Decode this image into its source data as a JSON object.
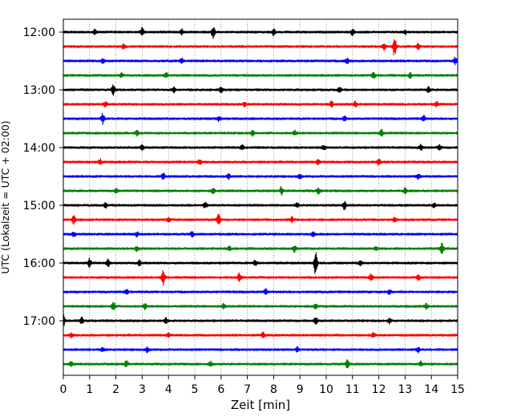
{
  "chart_data": {
    "type": "line",
    "xlabel": "Zeit  [min]",
    "ylabel": "UTC (Lokalzeit = UTC + 02:00)",
    "xlim": [
      0,
      15
    ],
    "x_ticks": [
      0,
      1,
      2,
      3,
      4,
      5,
      6,
      7,
      8,
      9,
      10,
      11,
      12,
      13,
      14,
      15
    ],
    "y_tick_labels": [
      "12:00",
      "13:00",
      "14:00",
      "15:00",
      "16:00",
      "17:00"
    ],
    "grid": "vertical-dotted",
    "color_cycle": [
      "#000000",
      "#ff0000",
      "#0000ff",
      "#008000"
    ],
    "traces": [
      {
        "start": "12:00",
        "color": "#000000",
        "events": [
          [
            1.2,
            0.5
          ],
          [
            3.0,
            0.8
          ],
          [
            4.5,
            0.6
          ],
          [
            5.7,
            1.2
          ],
          [
            8.0,
            0.6
          ],
          [
            11.0,
            0.6
          ],
          [
            13.0,
            0.5
          ]
        ]
      },
      {
        "start": "12:15",
        "color": "#ff0000",
        "events": [
          [
            2.3,
            0.6
          ],
          [
            12.2,
            0.8
          ],
          [
            12.6,
            2.2
          ],
          [
            13.5,
            0.6
          ]
        ]
      },
      {
        "start": "12:30",
        "color": "#0000ff",
        "events": [
          [
            1.5,
            0.5
          ],
          [
            4.5,
            0.6
          ],
          [
            10.8,
            0.5
          ],
          [
            14.9,
            0.7
          ]
        ]
      },
      {
        "start": "12:45",
        "color": "#008000",
        "events": [
          [
            2.2,
            0.5
          ],
          [
            3.9,
            0.6
          ],
          [
            11.8,
            0.6
          ],
          [
            13.2,
            0.5
          ]
        ]
      },
      {
        "start": "13:00",
        "color": "#000000",
        "events": [
          [
            1.9,
            1.2
          ],
          [
            4.2,
            0.5
          ],
          [
            6.0,
            0.6
          ],
          [
            10.5,
            0.6
          ],
          [
            13.9,
            0.6
          ]
        ]
      },
      {
        "start": "13:15",
        "color": "#ff0000",
        "events": [
          [
            1.6,
            0.5
          ],
          [
            6.9,
            0.5
          ],
          [
            10.2,
            0.6
          ],
          [
            11.1,
            0.6
          ],
          [
            14.2,
            0.5
          ]
        ]
      },
      {
        "start": "13:30",
        "color": "#0000ff",
        "events": [
          [
            1.5,
            1.0
          ],
          [
            5.9,
            0.5
          ],
          [
            10.7,
            0.5
          ],
          [
            13.7,
            0.6
          ]
        ]
      },
      {
        "start": "13:45",
        "color": "#008000",
        "events": [
          [
            2.8,
            0.5
          ],
          [
            7.2,
            0.5
          ],
          [
            8.8,
            0.5
          ],
          [
            12.1,
            0.7
          ]
        ]
      },
      {
        "start": "14:00",
        "color": "#000000",
        "events": [
          [
            3.0,
            0.6
          ],
          [
            6.8,
            0.5
          ],
          [
            9.9,
            0.6
          ],
          [
            13.6,
            0.6
          ],
          [
            14.3,
            0.5
          ]
        ]
      },
      {
        "start": "14:15",
        "color": "#ff0000",
        "events": [
          [
            1.4,
            0.6
          ],
          [
            5.2,
            0.6
          ],
          [
            9.7,
            0.6
          ],
          [
            12.0,
            0.7
          ]
        ]
      },
      {
        "start": "14:30",
        "color": "#0000ff",
        "events": [
          [
            3.8,
            0.6
          ],
          [
            6.3,
            0.5
          ],
          [
            9.0,
            0.5
          ],
          [
            13.5,
            0.5
          ]
        ]
      },
      {
        "start": "14:45",
        "color": "#008000",
        "events": [
          [
            2.0,
            0.5
          ],
          [
            5.7,
            0.5
          ],
          [
            8.3,
            0.9
          ],
          [
            9.7,
            0.7
          ],
          [
            13.0,
            0.6
          ]
        ]
      },
      {
        "start": "15:00",
        "color": "#000000",
        "events": [
          [
            1.6,
            0.5
          ],
          [
            5.4,
            0.6
          ],
          [
            8.9,
            0.5
          ],
          [
            10.7,
            1.0
          ],
          [
            14.1,
            0.5
          ]
        ]
      },
      {
        "start": "15:15",
        "color": "#ff0000",
        "events": [
          [
            0.4,
            0.9
          ],
          [
            4.0,
            0.5
          ],
          [
            5.9,
            1.3
          ],
          [
            8.7,
            0.5
          ],
          [
            12.6,
            0.5
          ]
        ]
      },
      {
        "start": "15:30",
        "color": "#0000ff",
        "events": [
          [
            0.4,
            0.6
          ],
          [
            2.8,
            0.5
          ],
          [
            4.9,
            0.5
          ],
          [
            9.5,
            0.5
          ]
        ]
      },
      {
        "start": "15:45",
        "color": "#008000",
        "events": [
          [
            2.8,
            0.5
          ],
          [
            6.3,
            0.5
          ],
          [
            8.8,
            0.7
          ],
          [
            11.9,
            0.5
          ],
          [
            14.4,
            1.0
          ]
        ]
      },
      {
        "start": "16:00",
        "color": "#000000",
        "events": [
          [
            1.0,
            0.9
          ],
          [
            1.7,
            0.8
          ],
          [
            2.9,
            0.6
          ],
          [
            7.3,
            0.6
          ],
          [
            9.6,
            2.8
          ],
          [
            11.3,
            0.5
          ]
        ]
      },
      {
        "start": "16:15",
        "color": "#ff0000",
        "events": [
          [
            3.8,
            1.6
          ],
          [
            6.7,
            0.9
          ],
          [
            11.7,
            0.8
          ],
          [
            13.5,
            0.6
          ]
        ]
      },
      {
        "start": "16:30",
        "color": "#0000ff",
        "events": [
          [
            2.4,
            0.5
          ],
          [
            7.7,
            0.5
          ],
          [
            12.4,
            0.5
          ]
        ]
      },
      {
        "start": "16:45",
        "color": "#008000",
        "events": [
          [
            1.9,
            1.0
          ],
          [
            3.1,
            0.6
          ],
          [
            6.1,
            0.5
          ],
          [
            9.6,
            0.5
          ],
          [
            13.8,
            0.5
          ]
        ]
      },
      {
        "start": "17:00",
        "color": "#000000",
        "events": [
          [
            0.0,
            1.3
          ],
          [
            0.7,
            0.6
          ],
          [
            3.9,
            0.5
          ],
          [
            9.6,
            0.8
          ],
          [
            12.4,
            0.5
          ]
        ]
      },
      {
        "start": "17:15",
        "color": "#ff0000",
        "events": [
          [
            0.3,
            0.5
          ],
          [
            4.0,
            0.5
          ],
          [
            7.6,
            0.5
          ],
          [
            11.8,
            0.5
          ]
        ]
      },
      {
        "start": "17:30",
        "color": "#0000ff",
        "events": [
          [
            1.5,
            0.5
          ],
          [
            3.2,
            0.5
          ],
          [
            8.9,
            0.5
          ],
          [
            13.5,
            0.5
          ]
        ]
      },
      {
        "start": "17:45",
        "color": "#008000",
        "events": [
          [
            0.3,
            0.5
          ],
          [
            2.4,
            0.8
          ],
          [
            5.6,
            0.5
          ],
          [
            10.8,
            1.0
          ],
          [
            13.6,
            0.5
          ]
        ]
      }
    ]
  }
}
